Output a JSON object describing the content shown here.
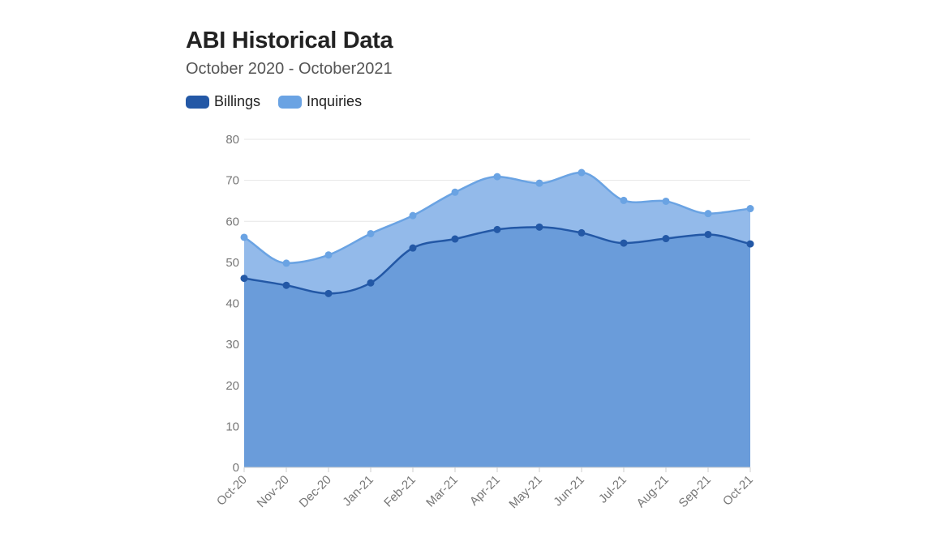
{
  "chart_data": {
    "type": "area",
    "title": "ABI Historical Data",
    "subtitle": "October 2020 - October2021",
    "xlabel": "",
    "ylabel": "",
    "ylim": [
      0,
      80
    ],
    "yticks": [
      "0",
      "10",
      "20",
      "30",
      "40",
      "50",
      "60",
      "70",
      "80"
    ],
    "categories": [
      "Oct-20",
      "Nov-20",
      "Dec-20",
      "Jan-21",
      "Feb-21",
      "Mar-21",
      "Apr-21",
      "May-21",
      "Jun-21",
      "Jul-21",
      "Aug-21",
      "Sep-21",
      "Oct-21"
    ],
    "series": [
      {
        "name": "Billings",
        "color": "#2358a6",
        "fill": "#6a9cda",
        "values": [
          46.1,
          44.4,
          42.4,
          45.0,
          53.5,
          55.7,
          58.0,
          58.6,
          57.2,
          54.7,
          55.8,
          56.8,
          54.5
        ]
      },
      {
        "name": "Inquiries",
        "color": "#6aa3e3",
        "fill": "#93baea",
        "values": [
          56.1,
          49.8,
          51.8,
          57.0,
          61.4,
          67.1,
          70.9,
          69.3,
          71.9,
          65.1,
          64.9,
          61.9,
          63.1
        ]
      }
    ],
    "legend": "top-left",
    "grid": true
  }
}
